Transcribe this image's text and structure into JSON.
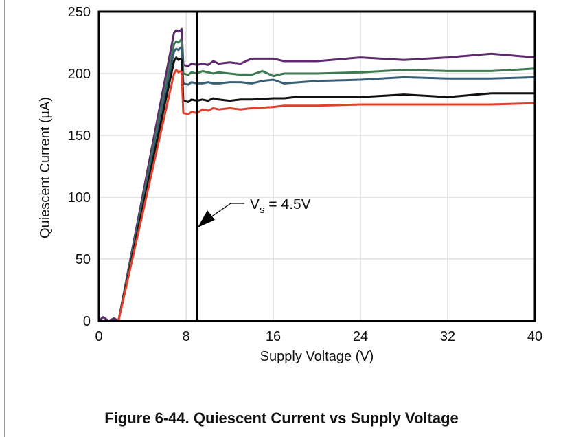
{
  "caption": "Figure 6-44. Quiescent Current vs Supply Voltage",
  "chart_data": {
    "type": "line",
    "title": "",
    "xlabel": "Supply Voltage (V)",
    "ylabel": "Quiescent Current (µA)",
    "xlim": [
      0,
      40
    ],
    "ylim": [
      0,
      250
    ],
    "xticks": [
      0,
      8,
      16,
      24,
      32,
      40
    ],
    "yticks": [
      0,
      50,
      100,
      150,
      200,
      250
    ],
    "grid": true,
    "marker_line": {
      "x": 9,
      "label_main": "V",
      "label_sub": "s",
      "label_rest": " = 4.5V"
    },
    "series": [
      {
        "name": "purple",
        "color": "#5e2a6e",
        "points": [
          [
            0,
            0
          ],
          [
            0.4,
            3
          ],
          [
            0.9,
            0
          ],
          [
            1.4,
            2
          ],
          [
            1.8,
            0
          ],
          [
            6.9,
            233
          ],
          [
            7.1,
            235
          ],
          [
            7.3,
            234
          ],
          [
            7.5,
            235
          ],
          [
            7.6,
            236
          ],
          [
            7.75,
            207
          ],
          [
            8.2,
            206
          ],
          [
            8.5,
            208
          ],
          [
            9,
            207
          ],
          [
            9.5,
            208
          ],
          [
            10,
            207
          ],
          [
            10.5,
            210
          ],
          [
            11,
            208
          ],
          [
            12,
            209
          ],
          [
            13,
            208
          ],
          [
            14,
            212
          ],
          [
            16,
            212
          ],
          [
            17,
            210
          ],
          [
            20,
            210
          ],
          [
            24,
            213
          ],
          [
            28,
            211
          ],
          [
            32,
            213
          ],
          [
            36,
            216
          ],
          [
            40,
            213
          ]
        ]
      },
      {
        "name": "green",
        "color": "#3e7a50",
        "points": [
          [
            1.8,
            0
          ],
          [
            6.9,
            224
          ],
          [
            7.1,
            226
          ],
          [
            7.3,
            225
          ],
          [
            7.5,
            227
          ],
          [
            7.6,
            226
          ],
          [
            7.75,
            200
          ],
          [
            8.2,
            199
          ],
          [
            8.5,
            201
          ],
          [
            9,
            200
          ],
          [
            9.5,
            202
          ],
          [
            10,
            201
          ],
          [
            10.5,
            200
          ],
          [
            11,
            201
          ],
          [
            12,
            200
          ],
          [
            13,
            199
          ],
          [
            14,
            199
          ],
          [
            15,
            202
          ],
          [
            16,
            198
          ],
          [
            17,
            200
          ],
          [
            20,
            200
          ],
          [
            24,
            201
          ],
          [
            28,
            203
          ],
          [
            32,
            202
          ],
          [
            36,
            202
          ],
          [
            40,
            204
          ]
        ]
      },
      {
        "name": "blue",
        "color": "#3a5f75",
        "points": [
          [
            1.8,
            0
          ],
          [
            6.9,
            218
          ],
          [
            7.1,
            220
          ],
          [
            7.3,
            219
          ],
          [
            7.5,
            221
          ],
          [
            7.6,
            220
          ],
          [
            7.75,
            192
          ],
          [
            8.2,
            191
          ],
          [
            8.5,
            193
          ],
          [
            9,
            192
          ],
          [
            9.5,
            192
          ],
          [
            10,
            193
          ],
          [
            10.5,
            192
          ],
          [
            11,
            192
          ],
          [
            12,
            193
          ],
          [
            13,
            193
          ],
          [
            14,
            192
          ],
          [
            15,
            194
          ],
          [
            16,
            195
          ],
          [
            17,
            192
          ],
          [
            20,
            194
          ],
          [
            24,
            195
          ],
          [
            28,
            197
          ],
          [
            32,
            196
          ],
          [
            36,
            196
          ],
          [
            40,
            197
          ]
        ]
      },
      {
        "name": "black",
        "color": "#111111",
        "points": [
          [
            1.8,
            0
          ],
          [
            6.9,
            210
          ],
          [
            7.1,
            213
          ],
          [
            7.3,
            211
          ],
          [
            7.5,
            212
          ],
          [
            7.6,
            211
          ],
          [
            7.75,
            178
          ],
          [
            8.2,
            177
          ],
          [
            8.5,
            179
          ],
          [
            9,
            178
          ],
          [
            9.5,
            179
          ],
          [
            10,
            178
          ],
          [
            10.5,
            180
          ],
          [
            11,
            179
          ],
          [
            12,
            178
          ],
          [
            13,
            179
          ],
          [
            14,
            179
          ],
          [
            16,
            180
          ],
          [
            17,
            180
          ],
          [
            18,
            181
          ],
          [
            20,
            181
          ],
          [
            24,
            181
          ],
          [
            28,
            183
          ],
          [
            32,
            181
          ],
          [
            36,
            184
          ],
          [
            40,
            184
          ]
        ]
      },
      {
        "name": "red",
        "color": "#e0412c",
        "points": [
          [
            1.8,
            0
          ],
          [
            6.9,
            200
          ],
          [
            7.1,
            203
          ],
          [
            7.3,
            201
          ],
          [
            7.5,
            202
          ],
          [
            7.6,
            201
          ],
          [
            7.75,
            168
          ],
          [
            8.2,
            167
          ],
          [
            8.5,
            169
          ],
          [
            9,
            168
          ],
          [
            9.5,
            171
          ],
          [
            10,
            170
          ],
          [
            10.5,
            172
          ],
          [
            11,
            171
          ],
          [
            12,
            172
          ],
          [
            13,
            171
          ],
          [
            14,
            172
          ],
          [
            16,
            173
          ],
          [
            17,
            174
          ],
          [
            20,
            174
          ],
          [
            24,
            175
          ],
          [
            28,
            175
          ],
          [
            32,
            175
          ],
          [
            36,
            175
          ],
          [
            40,
            176
          ]
        ]
      }
    ]
  }
}
